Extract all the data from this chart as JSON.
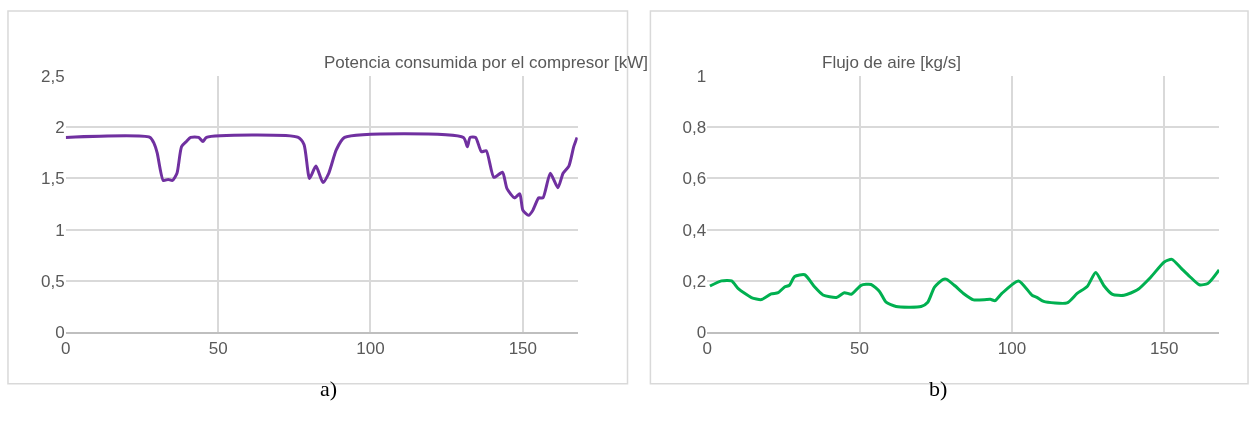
{
  "chart_data": [
    {
      "type": "line",
      "title": "Potencia consumida por el compresor [kW]",
      "annotations": [
        "a)"
      ],
      "grid": true,
      "line_style": "solid",
      "xlim": [
        0,
        168
      ],
      "xticks": [
        0,
        50,
        100,
        150
      ],
      "ylim": [
        0,
        2.5
      ],
      "yticks": [
        0,
        {
          "value": 0.5,
          "label": "0,5"
        },
        1,
        {
          "value": 1.5,
          "label": "1,5"
        },
        2,
        {
          "value": 2.5,
          "label": "2,5"
        }
      ],
      "series": [
        {
          "color": "#7030a0",
          "x": [
            0,
            27.6,
            29,
            30,
            32,
            33.6,
            35,
            36.5,
            38,
            39.6,
            41,
            43.6,
            45,
            46.2,
            76.3,
            78.2,
            80,
            82.1,
            84.4,
            86.3,
            88.8,
            91.5,
            130.5,
            131.8,
            132.7,
            134.5,
            136.4,
            138,
            140.5,
            143.3,
            144.8,
            147.3,
            149,
            150,
            151.9,
            153.3,
            155.2,
            156.6,
            159,
            161.5,
            163.2,
            165.1,
            166.7,
            167.8
          ],
          "values": [
            1.9,
            1.9,
            1.84,
            1.75,
            1.48,
            1.49,
            1.48,
            1.55,
            1.81,
            1.86,
            1.9,
            1.9,
            1.86,
            1.9,
            1.9,
            1.83,
            1.5,
            1.62,
            1.46,
            1.55,
            1.78,
            1.9,
            1.9,
            1.81,
            1.9,
            1.9,
            1.76,
            1.77,
            1.51,
            1.56,
            1.4,
            1.31,
            1.35,
            1.19,
            1.14,
            1.19,
            1.31,
            1.31,
            1.55,
            1.41,
            1.55,
            1.62,
            1.81,
            1.9
          ]
        }
      ]
    },
    {
      "type": "line",
      "title": "Flujo de aire [kg/s]",
      "annotations": [
        "b)"
      ],
      "grid": true,
      "line_style": "solid",
      "xlim": [
        0,
        168
      ],
      "xticks": [
        0,
        50,
        100,
        150
      ],
      "ylim": [
        0,
        1
      ],
      "yticks": [
        0,
        {
          "value": 0.2,
          "label": "0,2"
        },
        {
          "value": 0.4,
          "label": "0,4"
        },
        {
          "value": 0.6,
          "label": "0,6"
        },
        {
          "value": 0.8,
          "label": "0,8"
        },
        1
      ],
      "series": [
        {
          "color": "#00b050",
          "x": [
            0.9,
            4.7,
            8,
            10.2,
            14.5,
            17.8,
            21,
            23.3,
            25.4,
            27,
            28.7,
            32,
            35.3,
            38,
            42.4,
            45,
            47.3,
            50.5,
            53.8,
            56.6,
            58.7,
            62,
            70.2,
            72.4,
            74.6,
            77.3,
            78.6,
            81.3,
            84.1,
            87.4,
            92.9,
            94.5,
            96.7,
            102.2,
            106.6,
            108.2,
            110.4,
            118.1,
            121.4,
            124.7,
            127.5,
            130.2,
            133,
            136.8,
            141.2,
            145.6,
            150,
            152.5,
            155.5,
            158.2,
            161.5,
            164.3,
            168
          ],
          "values": [
            0.18,
            0.2,
            0.2,
            0.17,
            0.135,
            0.127,
            0.149,
            0.154,
            0.176,
            0.183,
            0.217,
            0.224,
            0.176,
            0.145,
            0.135,
            0.154,
            0.148,
            0.183,
            0.186,
            0.158,
            0.117,
            0.1,
            0.1,
            0.117,
            0.176,
            0.205,
            0.206,
            0.181,
            0.151,
            0.126,
            0.128,
            0.123,
            0.151,
            0.2,
            0.144,
            0.136,
            0.12,
            0.114,
            0.151,
            0.178,
            0.233,
            0.181,
            0.147,
            0.144,
            0.165,
            0.215,
            0.274,
            0.284,
            0.25,
            0.219,
            0.185,
            0.19,
            0.243
          ]
        }
      ]
    }
  ]
}
